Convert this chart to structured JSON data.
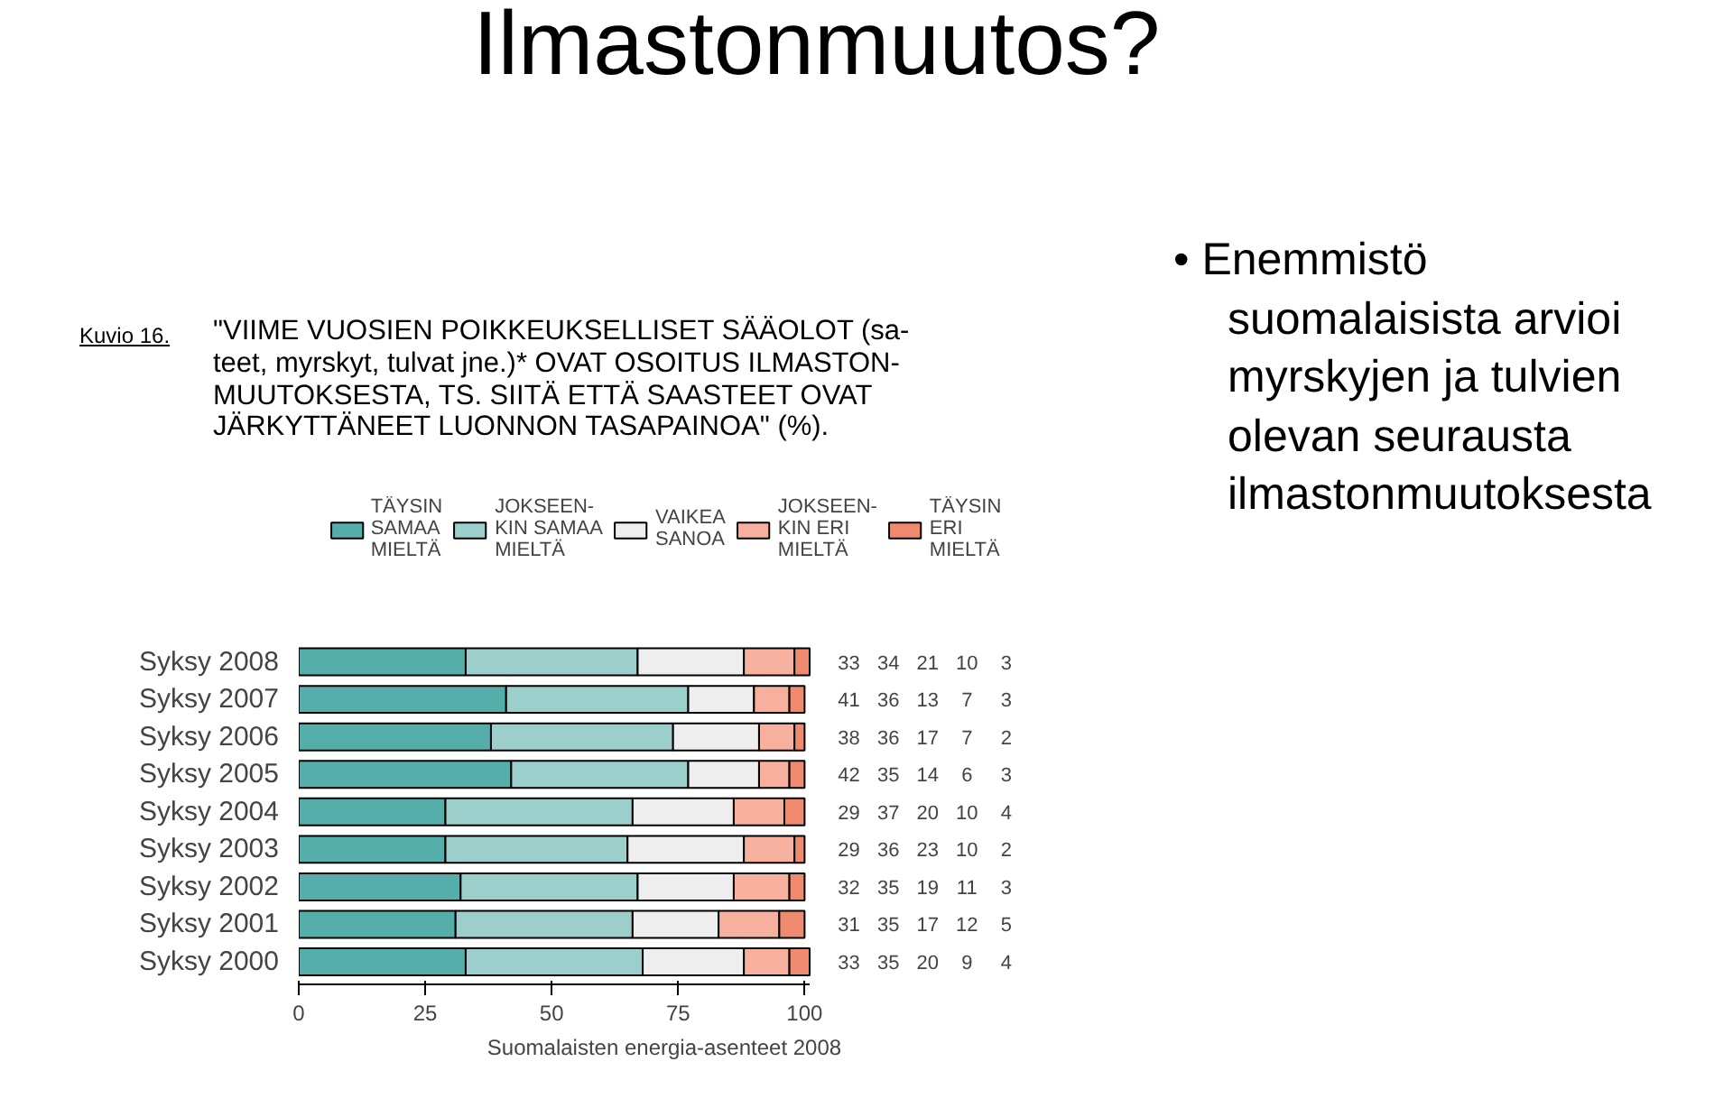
{
  "chart_data": {
    "type": "bar",
    "orientation": "horizontal",
    "stacked": true,
    "title": "Ilmastonmuutos?",
    "subtitle": "\"VIIME VUOSIEN POIKKEUKSELLISET SÄÄOLOT (sa-\nteet, myrskyt, tulvat jne.)* OVAT OSOITUS ILMASTON-\nMUUTOKSESTA, TS. SIITÄ ETTÄ SAASTEET OVAT\nJÄRKYTTÄNEET LUONNON TASAPAINOA\" (%).",
    "annotations": [
      "Kuvio 16.",
      "Suomalaisten energia-asenteet 2008",
      "• Enemmistö\nsuomalaisista arvioi\nmyrskyjen ja tulvien\nolevan seurausta\nilmastonmuutoksesta"
    ],
    "categories": [
      "Syksy 2008",
      "Syksy 2007",
      "Syksy 2006",
      "Syksy 2005",
      "Syksy 2004",
      "Syksy 2003",
      "Syksy 2002",
      "Syksy 2001",
      "Syksy 2000"
    ],
    "series": [
      {
        "name": "TÄYSIN\nSAMAA\nMIELTÄ",
        "color": "#56aeab",
        "values": [
          33,
          41,
          38,
          42,
          29,
          29,
          32,
          31,
          33
        ]
      },
      {
        "name": "JOKSEEN-\nKIN SAMAA\nMIELTÄ",
        "color": "#9ccfcc",
        "values": [
          34,
          36,
          36,
          35,
          37,
          36,
          35,
          35,
          35
        ]
      },
      {
        "name": "VAIKEA\nSANOA",
        "color": "#eeeeee",
        "values": [
          21,
          13,
          17,
          14,
          20,
          23,
          19,
          17,
          20
        ]
      },
      {
        "name": "JOKSEEN-\nKIN ERI\nMIELTÄ",
        "color": "#f7b09d",
        "values": [
          10,
          7,
          7,
          6,
          10,
          10,
          11,
          12,
          9
        ]
      },
      {
        "name": "TÄYSIN\nERI\nMIELTÄ",
        "color": "#f08a6e",
        "values": [
          3,
          3,
          2,
          3,
          4,
          2,
          3,
          5,
          4
        ]
      }
    ],
    "xlim": [
      0,
      101
    ],
    "xticks": [
      0,
      25,
      50,
      75,
      100
    ],
    "data_labels": true,
    "legend": "top"
  }
}
